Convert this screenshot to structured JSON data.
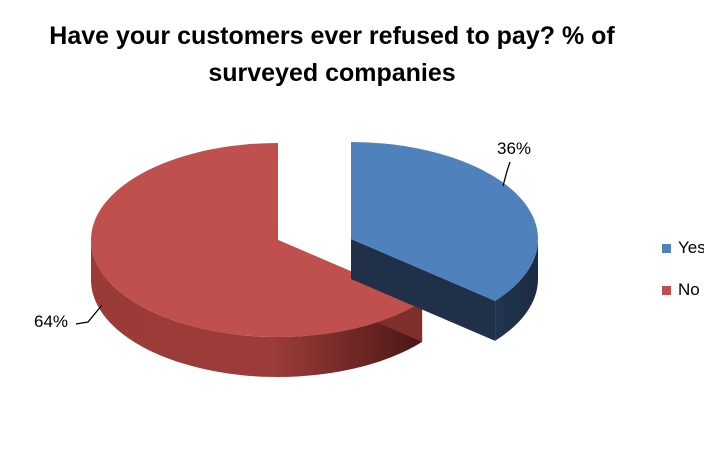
{
  "chart_data": {
    "type": "pie",
    "title_lines": [
      "Have your customers ever refused to pay? % of",
      "surveyed companies"
    ],
    "categories": [
      "Yes",
      "No"
    ],
    "values": [
      36,
      64
    ],
    "data_labels": [
      "36%",
      "64%"
    ],
    "colors": [
      "#4f81bd",
      "#c0504d"
    ],
    "legend_position": "right",
    "style": "3d-exploded"
  }
}
